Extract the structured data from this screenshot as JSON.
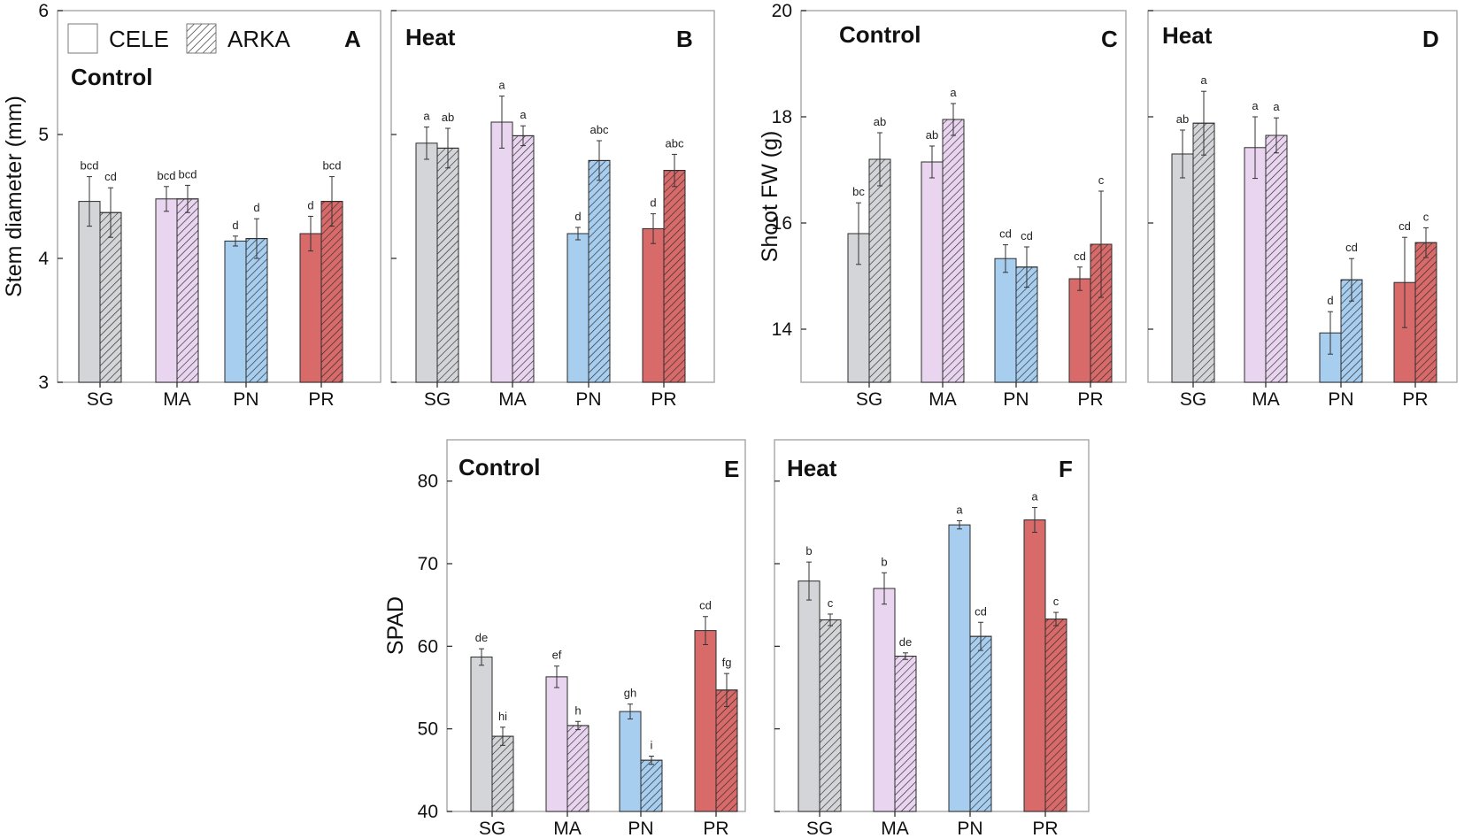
{
  "legend": {
    "cultivars": [
      {
        "name": "CELE",
        "pattern": "solid"
      },
      {
        "name": "ARKA",
        "pattern": "hatched"
      }
    ]
  },
  "colors": {
    "SG": "#d4d5d8",
    "MA": "#ead5f0",
    "PN": "#a7cdef",
    "PR": "#d86a6a"
  },
  "chart_data": [
    {
      "panel": "A",
      "title": "Control",
      "type": "bar",
      "ylabel": "Stem diameter (mm)",
      "ylim": [
        3,
        6
      ],
      "yticks": [
        3,
        4,
        5,
        6
      ],
      "categories": [
        "SG",
        "MA",
        "PN",
        "PR"
      ],
      "series": [
        {
          "name": "CELE",
          "values": [
            4.46,
            4.48,
            4.14,
            4.2
          ],
          "errors": [
            0.2,
            0.1,
            0.04,
            0.14
          ],
          "letters": [
            "bcd",
            "bcd",
            "d",
            "d"
          ]
        },
        {
          "name": "ARKA",
          "values": [
            4.37,
            4.48,
            4.16,
            4.46
          ],
          "errors": [
            0.2,
            0.11,
            0.16,
            0.2
          ],
          "letters": [
            "cd",
            "bcd",
            "d",
            "bcd"
          ]
        }
      ]
    },
    {
      "panel": "B",
      "title": "Heat",
      "type": "bar",
      "ylabel": "",
      "ylim": [
        3,
        6
      ],
      "yticks": [
        3,
        4,
        5,
        6
      ],
      "categories": [
        "SG",
        "MA",
        "PN",
        "PR"
      ],
      "series": [
        {
          "name": "CELE",
          "values": [
            4.93,
            5.1,
            4.2,
            4.24
          ],
          "errors": [
            0.13,
            0.21,
            0.05,
            0.12
          ],
          "letters": [
            "a",
            "a",
            "d",
            "d"
          ]
        },
        {
          "name": "ARKA",
          "values": [
            4.89,
            4.99,
            4.79,
            4.71
          ],
          "errors": [
            0.16,
            0.08,
            0.16,
            0.13
          ],
          "letters": [
            "ab",
            "a",
            "abc",
            "abc"
          ]
        }
      ]
    },
    {
      "panel": "C",
      "title": "Control",
      "type": "bar",
      "ylabel": "Shoot FW (g)",
      "ylim": [
        13,
        20
      ],
      "yticks": [
        14,
        16,
        18,
        20
      ],
      "categories": [
        "SG",
        "MA",
        "PN",
        "PR"
      ],
      "series": [
        {
          "name": "CELE",
          "values": [
            15.8,
            17.15,
            15.33,
            14.95
          ],
          "errors": [
            0.58,
            0.3,
            0.26,
            0.22
          ],
          "letters": [
            "bc",
            "ab",
            "cd",
            "cd"
          ]
        },
        {
          "name": "ARKA",
          "values": [
            17.2,
            17.95,
            15.17,
            15.6
          ],
          "errors": [
            0.5,
            0.3,
            0.38,
            1.0
          ],
          "letters": [
            "ab",
            "a",
            "cd",
            "c"
          ]
        }
      ]
    },
    {
      "panel": "D",
      "title": "Heat",
      "type": "bar",
      "ylabel": "",
      "ylim": [
        13,
        20
      ],
      "yticks": [
        14,
        16,
        18,
        20
      ],
      "categories": [
        "SG",
        "MA",
        "PN",
        "PR"
      ],
      "series": [
        {
          "name": "CELE",
          "values": [
            17.3,
            17.42,
            13.93,
            14.88
          ],
          "errors": [
            0.45,
            0.58,
            0.4,
            0.85
          ],
          "letters": [
            "ab",
            "a",
            "d",
            "cd"
          ]
        },
        {
          "name": "ARKA",
          "values": [
            17.88,
            17.65,
            14.93,
            15.63
          ],
          "errors": [
            0.6,
            0.33,
            0.4,
            0.28
          ],
          "letters": [
            "a",
            "a",
            "cd",
            "c"
          ]
        }
      ]
    },
    {
      "panel": "E",
      "title": "Control",
      "type": "bar",
      "ylabel": "SPAD",
      "ylim": [
        40,
        85
      ],
      "yticks": [
        40,
        50,
        60,
        70,
        80
      ],
      "categories": [
        "SG",
        "MA",
        "PN",
        "PR"
      ],
      "series": [
        {
          "name": "CELE",
          "values": [
            58.7,
            56.3,
            52.1,
            61.9
          ],
          "errors": [
            1.0,
            1.3,
            0.9,
            1.7
          ],
          "letters": [
            "de",
            "ef",
            "gh",
            "cd"
          ]
        },
        {
          "name": "ARKA",
          "values": [
            49.1,
            50.4,
            46.2,
            54.7
          ],
          "errors": [
            1.1,
            0.5,
            0.5,
            2.0
          ],
          "letters": [
            "hi",
            "h",
            "i",
            "fg"
          ]
        }
      ]
    },
    {
      "panel": "F",
      "title": "Heat",
      "type": "bar",
      "ylabel": "",
      "ylim": [
        40,
        85
      ],
      "yticks": [
        40,
        50,
        60,
        70,
        80
      ],
      "categories": [
        "SG",
        "MA",
        "PN",
        "PR"
      ],
      "series": [
        {
          "name": "CELE",
          "values": [
            67.9,
            67.0,
            74.7,
            75.3
          ],
          "errors": [
            2.3,
            1.9,
            0.5,
            1.5
          ],
          "letters": [
            "b",
            "b",
            "a",
            "a"
          ]
        },
        {
          "name": "ARKA",
          "values": [
            63.2,
            58.8,
            61.2,
            63.3
          ],
          "errors": [
            0.7,
            0.4,
            1.7,
            0.8
          ],
          "letters": [
            "c",
            "de",
            "cd",
            "c"
          ]
        }
      ]
    }
  ]
}
